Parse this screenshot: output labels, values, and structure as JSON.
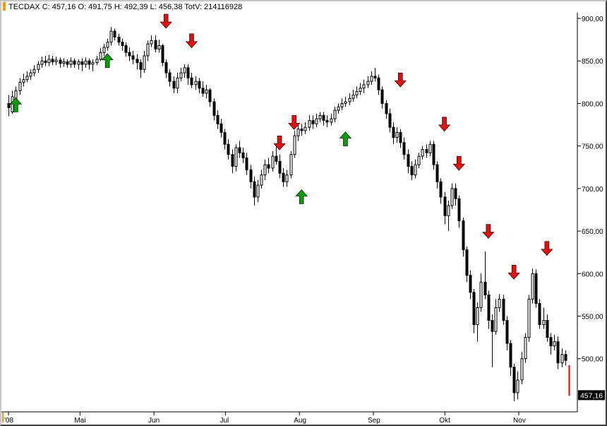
{
  "header": {
    "symbol": "TECDAX",
    "info": "C: 457,16 O: 491,75 H: 492,39 L: 456,38 TotV: 214116928"
  },
  "last_price_label": "457,16",
  "colors": {
    "candle": "#000000",
    "last_candle": "#ff0000",
    "price_tag_bg": "#000000",
    "price_tag_text": "#ffffff",
    "arrow_up": "#0a9a0a",
    "arrow_down": "#e01010",
    "axis_marker": "#ff9900"
  },
  "chart_data": {
    "type": "candlestick",
    "title": "",
    "ylim": [
      440,
      905
    ],
    "y_ticks": [
      "500,00",
      "550,00",
      "600,00",
      "650,00",
      "700,00",
      "750,00",
      "800,00",
      "850,00",
      "900,00"
    ],
    "y_tick_values": [
      500,
      550,
      600,
      650,
      700,
      750,
      800,
      850,
      900
    ],
    "x_ticks": [
      {
        "label": "'08",
        "date": "2008-04-01"
      },
      {
        "label": "Mai",
        "date": "2008-05-01"
      },
      {
        "label": "Jun",
        "date": "2008-06-01"
      },
      {
        "label": "Jul",
        "date": "2008-07-01"
      },
      {
        "label": "Aug",
        "date": "2008-08-01"
      },
      {
        "label": "Sep",
        "date": "2008-09-01"
      },
      {
        "label": "Okt",
        "date": "2008-10-01"
      },
      {
        "label": "Nov",
        "date": "2008-11-01"
      }
    ],
    "candles": [
      [
        800,
        795,
        810,
        785
      ],
      [
        790,
        808,
        815,
        788
      ],
      [
        806,
        815,
        820,
        800
      ],
      [
        815,
        825,
        830,
        810
      ],
      [
        825,
        828,
        835,
        820
      ],
      [
        828,
        832,
        838,
        825
      ],
      [
        832,
        836,
        840,
        828
      ],
      [
        836,
        840,
        845,
        832
      ],
      [
        840,
        846,
        850,
        836
      ],
      [
        846,
        850,
        855,
        842
      ],
      [
        850,
        848,
        856,
        844
      ],
      [
        848,
        852,
        857,
        844
      ],
      [
        852,
        849,
        856,
        845
      ],
      [
        849,
        851,
        855,
        845
      ],
      [
        851,
        847,
        854,
        842
      ],
      [
        847,
        849,
        853,
        843
      ],
      [
        849,
        846,
        852,
        842
      ],
      [
        846,
        850,
        854,
        842
      ],
      [
        850,
        846,
        853,
        842
      ],
      [
        846,
        849,
        852,
        840
      ],
      [
        849,
        846,
        853,
        838
      ],
      [
        846,
        850,
        854,
        842
      ],
      [
        850,
        846,
        853,
        840
      ],
      [
        846,
        848,
        852,
        838
      ],
      [
        848,
        852,
        856,
        845
      ],
      [
        852,
        860,
        865,
        850
      ],
      [
        860,
        866,
        870,
        856
      ],
      [
        866,
        872,
        876,
        862
      ],
      [
        872,
        885,
        890,
        868
      ],
      [
        885,
        878,
        888,
        874
      ],
      [
        878,
        872,
        882,
        868
      ],
      [
        872,
        868,
        876,
        862
      ],
      [
        868,
        860,
        872,
        855
      ],
      [
        860,
        856,
        866,
        850
      ],
      [
        856,
        852,
        862,
        846
      ],
      [
        852,
        848,
        858,
        840
      ],
      [
        848,
        840,
        852,
        830
      ],
      [
        840,
        856,
        862,
        836
      ],
      [
        856,
        870,
        874,
        850
      ],
      [
        870,
        874,
        880,
        866
      ],
      [
        874,
        864,
        880,
        860
      ],
      [
        864,
        868,
        875,
        860
      ],
      [
        868,
        848,
        870,
        844
      ],
      [
        848,
        836,
        852,
        830
      ],
      [
        836,
        826,
        840,
        820
      ],
      [
        826,
        818,
        832,
        812
      ],
      [
        818,
        830,
        836,
        812
      ],
      [
        830,
        836,
        842,
        826
      ],
      [
        836,
        842,
        846,
        830
      ],
      [
        842,
        830,
        846,
        822
      ],
      [
        830,
        822,
        836,
        818
      ],
      [
        822,
        826,
        832,
        816
      ],
      [
        826,
        818,
        830,
        812
      ],
      [
        818,
        812,
        826,
        808
      ],
      [
        812,
        816,
        822,
        806
      ],
      [
        816,
        802,
        818,
        796
      ],
      [
        802,
        786,
        806,
        780
      ],
      [
        786,
        776,
        792,
        770
      ],
      [
        776,
        766,
        782,
        760
      ],
      [
        766,
        752,
        770,
        746
      ],
      [
        752,
        740,
        758,
        734
      ],
      [
        740,
        726,
        746,
        718
      ],
      [
        726,
        748,
        752,
        720
      ],
      [
        748,
        742,
        756,
        736
      ],
      [
        742,
        736,
        748,
        730
      ],
      [
        736,
        722,
        742,
        716
      ],
      [
        722,
        708,
        728,
        700
      ],
      [
        708,
        690,
        714,
        680
      ],
      [
        690,
        704,
        710,
        684
      ],
      [
        704,
        716,
        722,
        700
      ],
      [
        716,
        728,
        734,
        710
      ],
      [
        728,
        724,
        736,
        718
      ],
      [
        724,
        738,
        744,
        720
      ],
      [
        738,
        732,
        752,
        728
      ],
      [
        732,
        718,
        740,
        712
      ],
      [
        718,
        708,
        724,
        702
      ],
      [
        708,
        716,
        722,
        702
      ],
      [
        716,
        740,
        744,
        712
      ],
      [
        740,
        762,
        768,
        736
      ],
      [
        762,
        770,
        776,
        756
      ],
      [
        770,
        768,
        776,
        762
      ],
      [
        768,
        772,
        778,
        764
      ],
      [
        772,
        780,
        786,
        768
      ],
      [
        780,
        776,
        786,
        770
      ],
      [
        776,
        782,
        788,
        772
      ],
      [
        782,
        786,
        790,
        778
      ],
      [
        786,
        780,
        790,
        774
      ],
      [
        780,
        778,
        786,
        772
      ],
      [
        778,
        782,
        788,
        774
      ],
      [
        782,
        792,
        796,
        778
      ],
      [
        792,
        796,
        800,
        788
      ],
      [
        796,
        800,
        806,
        792
      ],
      [
        800,
        802,
        808,
        796
      ],
      [
        802,
        806,
        812,
        798
      ],
      [
        806,
        810,
        816,
        802
      ],
      [
        810,
        814,
        820,
        806
      ],
      [
        814,
        818,
        824,
        810
      ],
      [
        818,
        822,
        828,
        812
      ],
      [
        822,
        826,
        832,
        818
      ],
      [
        826,
        832,
        838,
        822
      ],
      [
        832,
        830,
        842,
        826
      ],
      [
        830,
        816,
        834,
        810
      ],
      [
        816,
        800,
        820,
        794
      ],
      [
        800,
        788,
        804,
        782
      ],
      [
        788,
        772,
        794,
        766
      ],
      [
        772,
        760,
        778,
        752
      ],
      [
        760,
        766,
        772,
        754
      ],
      [
        766,
        754,
        770,
        748
      ],
      [
        754,
        740,
        760,
        734
      ],
      [
        740,
        726,
        746,
        718
      ],
      [
        726,
        716,
        732,
        710
      ],
      [
        716,
        728,
        734,
        712
      ],
      [
        728,
        738,
        742,
        724
      ],
      [
        738,
        746,
        750,
        734
      ],
      [
        746,
        742,
        752,
        736
      ],
      [
        742,
        752,
        756,
        738
      ],
      [
        752,
        728,
        756,
        722
      ],
      [
        728,
        708,
        732,
        700
      ],
      [
        708,
        690,
        712,
        682
      ],
      [
        690,
        668,
        696,
        658
      ],
      [
        668,
        680,
        686,
        650
      ],
      [
        680,
        700,
        706,
        676
      ],
      [
        700,
        688,
        706,
        680
      ],
      [
        688,
        662,
        692,
        654
      ],
      [
        662,
        628,
        666,
        620
      ],
      [
        628,
        598,
        632,
        590
      ],
      [
        598,
        578,
        604,
        570
      ],
      [
        578,
        540,
        582,
        530
      ],
      [
        540,
        560,
        566,
        520
      ],
      [
        560,
        590,
        600,
        555
      ],
      [
        590,
        575,
        626,
        570
      ],
      [
        575,
        545,
        580,
        535
      ],
      [
        545,
        532,
        552,
        490
      ],
      [
        532,
        560,
        570,
        528
      ],
      [
        560,
        570,
        576,
        555
      ],
      [
        570,
        545,
        575,
        540
      ],
      [
        545,
        518,
        550,
        510
      ],
      [
        518,
        490,
        522,
        480
      ],
      [
        490,
        460,
        494,
        450
      ],
      [
        460,
        475,
        485,
        452
      ],
      [
        475,
        500,
        508,
        470
      ],
      [
        500,
        525,
        530,
        495
      ],
      [
        525,
        570,
        575,
        520
      ],
      [
        570,
        600,
        606,
        565
      ],
      [
        600,
        565,
        605,
        560
      ],
      [
        565,
        540,
        570,
        535
      ],
      [
        540,
        545,
        560,
        535
      ],
      [
        545,
        525,
        552,
        520
      ],
      [
        525,
        515,
        530,
        505
      ],
      [
        515,
        520,
        528,
        510
      ],
      [
        520,
        495,
        526,
        488
      ],
      [
        495,
        505,
        512,
        490
      ],
      [
        505,
        498,
        510,
        492
      ],
      [
        491.75,
        457.16,
        492.39,
        456.38
      ]
    ],
    "signals": [
      {
        "index": 2,
        "type": "up",
        "price": 810
      },
      {
        "index": 27,
        "type": "up",
        "price": 862
      },
      {
        "index": 43,
        "type": "down",
        "price": 885
      },
      {
        "index": 50,
        "type": "down",
        "price": 862
      },
      {
        "index": 74,
        "type": "down",
        "price": 742
      },
      {
        "index": 78,
        "type": "down",
        "price": 766
      },
      {
        "index": 80,
        "type": "up",
        "price": 702
      },
      {
        "index": 92,
        "type": "up",
        "price": 770
      },
      {
        "index": 107,
        "type": "down",
        "price": 816
      },
      {
        "index": 119,
        "type": "down",
        "price": 764
      },
      {
        "index": 123,
        "type": "down",
        "price": 718
      },
      {
        "index": 131,
        "type": "down",
        "price": 638
      },
      {
        "index": 138,
        "type": "down",
        "price": 590
      },
      {
        "index": 147,
        "type": "down",
        "price": 618
      }
    ]
  }
}
